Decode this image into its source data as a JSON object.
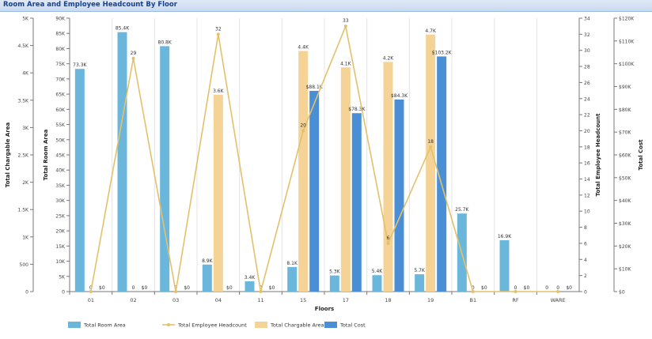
{
  "panel": {
    "title": "Room Area and Employee Headcount By Floor"
  },
  "chart_data": {
    "type": "bar",
    "title": "Room Area and Employee Headcount By Floor",
    "xlabel": "Floors",
    "categories": [
      "01",
      "02",
      "03",
      "04",
      "11",
      "15",
      "17",
      "18",
      "19",
      "B1",
      "RF",
      "WARE"
    ],
    "axes": {
      "chargable": {
        "label": "Total Chargable Area",
        "position": "left-outer",
        "range": [
          0,
          5000
        ],
        "ticks": [
          "0",
          "500",
          "1K",
          "1.5K",
          "2K",
          "2.5K",
          "3K",
          "3.5K",
          "4K",
          "4.5K",
          "5K"
        ]
      },
      "room": {
        "label": "Total Room Area",
        "position": "left-inner",
        "range": [
          0,
          90000
        ],
        "ticks": [
          "0",
          "5K",
          "10K",
          "15K",
          "20K",
          "25K",
          "30K",
          "35K",
          "40K",
          "45K",
          "50K",
          "55K",
          "60K",
          "65K",
          "70K",
          "75K",
          "80K",
          "85K",
          "90K"
        ]
      },
      "headcount": {
        "label": "Total Employee Headcount",
        "position": "right-inner",
        "range": [
          0,
          34
        ],
        "ticks": [
          "0",
          "2",
          "4",
          "6",
          "8",
          "10",
          "12",
          "14",
          "16",
          "18",
          "20",
          "22",
          "24",
          "26",
          "28",
          "30",
          "32",
          "34"
        ]
      },
      "cost": {
        "label": "Total Cost",
        "position": "right-outer",
        "range": [
          0,
          120000
        ],
        "ticks": [
          "$0",
          "$10K",
          "$20K",
          "$30K",
          "$40K",
          "$50K",
          "$60K",
          "$70K",
          "$80K",
          "$90K",
          "$100K",
          "$110K",
          "$120K"
        ]
      }
    },
    "series": [
      {
        "name": "Total Room Area",
        "kind": "bar",
        "axis": "room",
        "color": "#6bb7dc",
        "values": [
          73300,
          85400,
          80800,
          8900,
          3400,
          8100,
          5300,
          5400,
          5700,
          25700,
          16900,
          0
        ],
        "labels": [
          "73.3K",
          "85.4K",
          "80.8K",
          "8.9K",
          "3.4K",
          "8.1K",
          "5.3K",
          "5.4K",
          "5.7K",
          "25.7K",
          "16.9K",
          "0"
        ]
      },
      {
        "name": "Total Chargable Area",
        "kind": "bar",
        "axis": "chargable",
        "color": "#f5d295",
        "values": [
          0,
          0,
          0,
          3600,
          0,
          4400,
          4100,
          4200,
          4700,
          0,
          0,
          0
        ],
        "labels": [
          "0",
          "0",
          "0",
          "3.6K",
          "0",
          "4.4K",
          "4.1K",
          "4.2K",
          "4.7K",
          "0",
          "0",
          "0"
        ]
      },
      {
        "name": "Total Cost",
        "kind": "bar",
        "axis": "cost",
        "color": "#4a8fd6",
        "values": [
          0,
          0,
          0,
          0,
          0,
          88100,
          78300,
          84300,
          103200,
          0,
          0,
          0
        ],
        "labels": [
          "$0",
          "$0",
          "$0",
          "$0",
          "$0",
          "$88.1K",
          "$78.3K",
          "$84.3K",
          "$103.2K",
          "$0",
          "$0",
          "$0"
        ]
      },
      {
        "name": "Total Employee Headcount",
        "kind": "line",
        "axis": "headcount",
        "color": "#e3c16b",
        "values": [
          0,
          29,
          0,
          32,
          0,
          20,
          33,
          6,
          18,
          0,
          0,
          0
        ],
        "labels": [
          "0",
          "29",
          "0",
          "32",
          "0",
          "20",
          "33",
          "6",
          "18",
          "0",
          "0",
          "0"
        ]
      }
    ],
    "legend": {
      "position": "bottom-left",
      "items": [
        {
          "name": "Total Room Area",
          "kind": "bar",
          "color": "#6bb7dc"
        },
        {
          "name": "Total Employee Headcount",
          "kind": "line",
          "color": "#e3c16b"
        },
        {
          "name": "Total Chargable Area",
          "kind": "bar",
          "color": "#f5d295"
        },
        {
          "name": "Total Cost",
          "kind": "bar",
          "color": "#4a8fd6"
        }
      ]
    },
    "grid": "vertical"
  }
}
